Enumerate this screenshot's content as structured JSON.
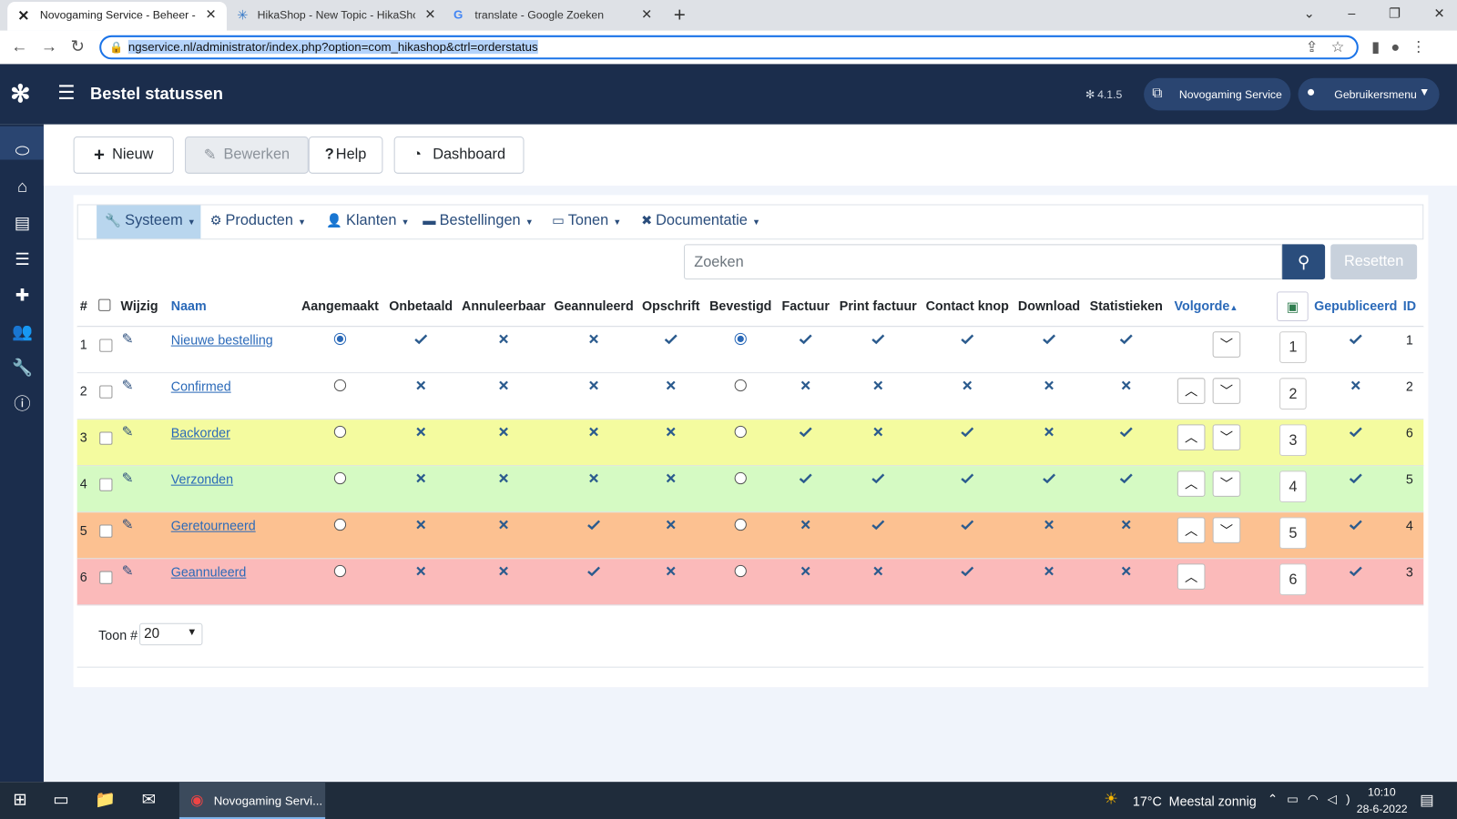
{
  "browser": {
    "tabs": [
      "Novogaming Service - Beheer - E",
      "HikaShop - New Topic - HikaSho",
      "translate - Google Zoeken"
    ],
    "url": "ngservice.nl/administrator/index.php?option=com_hikashop&ctrl=orderstatus"
  },
  "header": {
    "title": "Bestel statussen",
    "version": "4.1.5",
    "site_button": "Novogaming Service",
    "user_menu": "Gebruikersmenu"
  },
  "toolbar": [
    "Nieuw",
    "Bewerken",
    "Help",
    "Dashboard"
  ],
  "menu": [
    "Systeem",
    "Producten",
    "Klanten",
    "Bestellingen",
    "Tonen",
    "Documentatie"
  ],
  "search": {
    "placeholder": "Zoeken",
    "reset": "Resetten"
  },
  "table": {
    "columns": [
      "#",
      "Wijzig",
      "Naam",
      "Aangemaakt",
      "Onbetaald",
      "Annuleerbaar",
      "Geannuleerd",
      "Opschrift",
      "Bevestigd",
      "Factuur",
      "Print factuur",
      "Contact knop",
      "Download",
      "Statistieken",
      "Volgorde",
      "Gepubliceerd",
      "ID"
    ],
    "rows": [
      {
        "num": 1,
        "name": "Nieuwe bestelling",
        "color": "#ffffff",
        "flags": [
          true,
          true,
          false,
          false,
          true,
          true,
          true,
          true,
          true,
          true,
          true
        ],
        "order": 1,
        "published": true,
        "id": 1
      },
      {
        "num": 2,
        "name": "Confirmed",
        "color": "#ffffff",
        "flags": [
          false,
          false,
          false,
          false,
          false,
          false,
          false,
          false,
          false,
          false,
          false
        ],
        "order": 2,
        "published": false,
        "id": 2
      },
      {
        "num": 3,
        "name": "Backorder",
        "color": "#f4fb9f",
        "flags": [
          false,
          false,
          false,
          false,
          false,
          false,
          true,
          false,
          true,
          false,
          true
        ],
        "order": 3,
        "published": true,
        "id": 6
      },
      {
        "num": 4,
        "name": "Verzonden",
        "color": "#d5fac3",
        "flags": [
          false,
          false,
          false,
          false,
          false,
          false,
          true,
          true,
          true,
          true,
          true
        ],
        "order": 4,
        "published": true,
        "id": 5
      },
      {
        "num": 5,
        "name": "Geretourneerd",
        "color": "#fcc191",
        "flags": [
          false,
          false,
          false,
          true,
          false,
          false,
          false,
          true,
          true,
          false,
          false
        ],
        "order": 5,
        "published": true,
        "id": 4
      },
      {
        "num": 6,
        "name": "Geannuleerd",
        "color": "#fbbaba",
        "flags": [
          false,
          false,
          false,
          true,
          false,
          false,
          false,
          false,
          true,
          false,
          false
        ],
        "order": 6,
        "published": true,
        "id": 3
      }
    ]
  },
  "pagination": {
    "label": "Toon #",
    "value": 20
  },
  "taskbar": {
    "app": "Novogaming Servi...",
    "temperature": "17°C",
    "weather": "Meestal zonnig",
    "time": "10:10",
    "date": "28-6-2022"
  }
}
